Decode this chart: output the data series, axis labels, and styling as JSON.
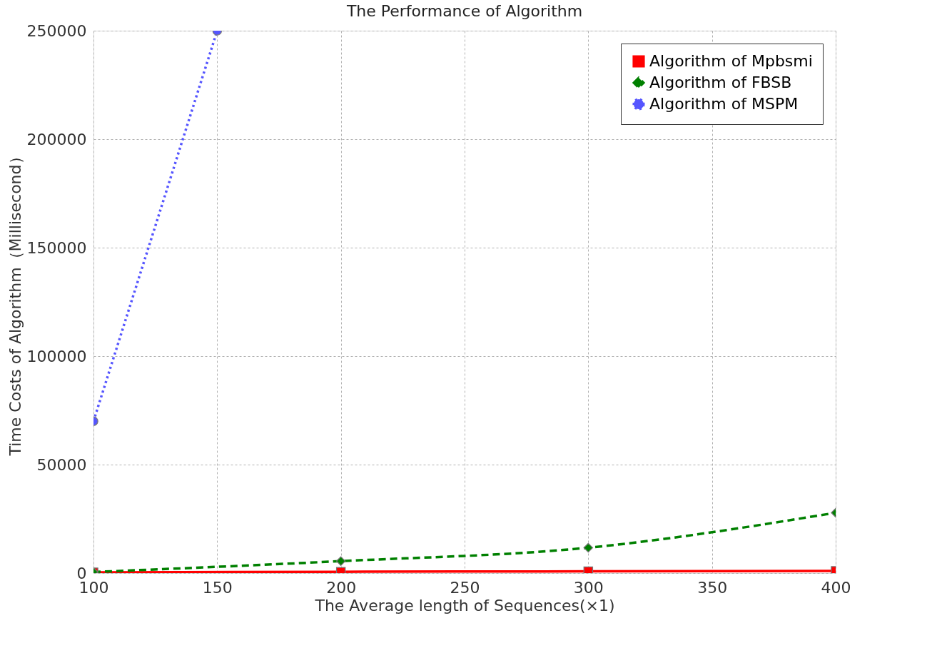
{
  "chart_data": {
    "type": "line",
    "title": "The Performance of Algorithm",
    "xlabel": "The Average length of Sequences(×1)",
    "ylabel": "Time Costs of Algorithm（Millisecond）",
    "xlim": [
      100,
      400
    ],
    "xticks": [
      100,
      150,
      200,
      250,
      300,
      350,
      400
    ],
    "ylim": [
      0,
      250000
    ],
    "yticks": [
      0,
      50000,
      100000,
      150000,
      200000,
      250000
    ],
    "grid": true,
    "legend": "top right",
    "series": [
      {
        "name": "Algorithm of Mpbsmi",
        "color": "#ff0000",
        "marker": "square",
        "line_style": "solid",
        "x": [
          100,
          200,
          300,
          400
        ],
        "values": [
          300,
          600,
          800,
          1000
        ]
      },
      {
        "name": "Algorithm of FBSB",
        "color": "#008000",
        "marker": "diamond",
        "line_style": "dashed",
        "x": [
          100,
          200,
          300,
          400
        ],
        "values": [
          500,
          5500,
          11700,
          27800
        ]
      },
      {
        "name": "Algorithm of MSPM",
        "color": "#5555ff",
        "marker": "circle",
        "line_style": "dotted",
        "x": [
          100,
          150
        ],
        "values": [
          70000,
          250000
        ]
      }
    ]
  }
}
